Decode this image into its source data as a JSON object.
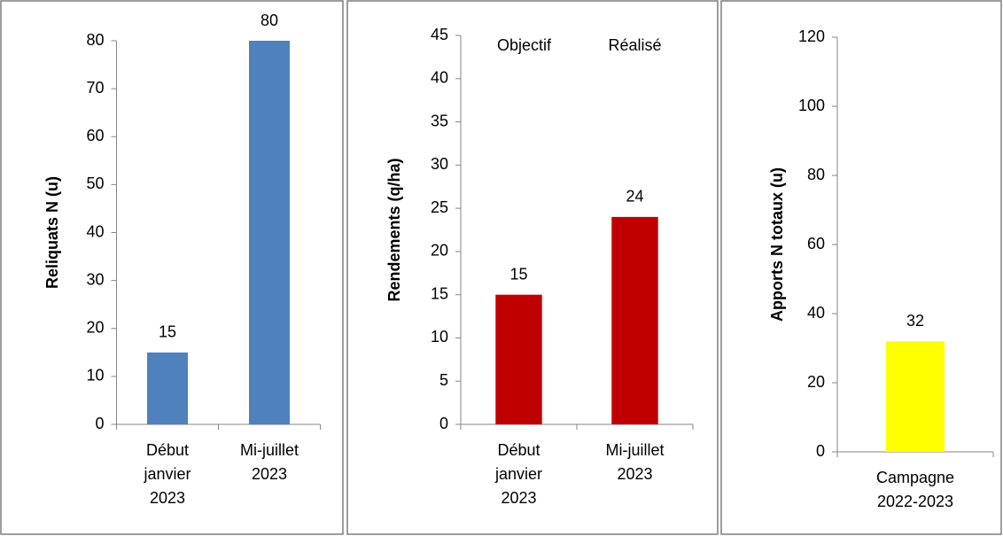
{
  "chart_data": [
    {
      "type": "bar",
      "ylabel": "Reliquats N (u)",
      "categories": [
        "Début janvier 2023",
        "Mi-juillet 2023"
      ],
      "values": [
        15,
        80
      ],
      "color": "#4f81bd",
      "ylim": [
        0,
        80
      ],
      "yticks": [
        0,
        10,
        20,
        30,
        40,
        50,
        60,
        70,
        80
      ]
    },
    {
      "type": "bar",
      "ylabel": "Rendements (q/ha)",
      "categories": [
        "Début janvier 2023",
        "Mi-juillet 2023"
      ],
      "values": [
        15,
        24
      ],
      "color": "#c00000",
      "ylim": [
        0,
        45
      ],
      "yticks": [
        0,
        5,
        10,
        15,
        20,
        25,
        30,
        35,
        40,
        45
      ],
      "annotations": [
        "Objectif",
        "Réalisé"
      ]
    },
    {
      "type": "bar",
      "ylabel": "Apports N totaux (u)",
      "categories": [
        "Campagne 2022-2023"
      ],
      "values": [
        32
      ],
      "color": "#ffff00",
      "ylim": [
        0,
        120
      ],
      "yticks": [
        0,
        20,
        40,
        60,
        80,
        100,
        120
      ]
    }
  ]
}
